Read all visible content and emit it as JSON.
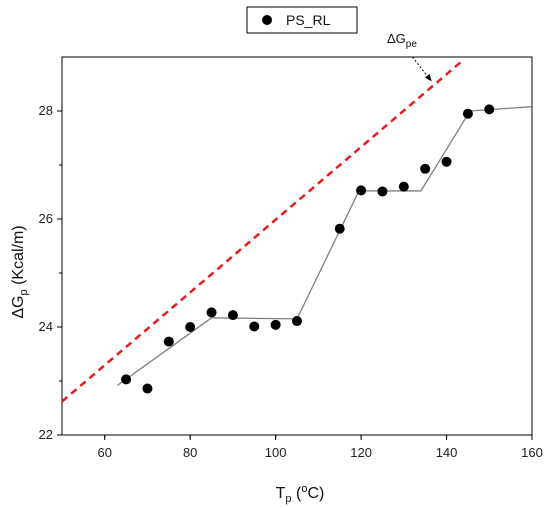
{
  "chart_data": {
    "type": "scatter",
    "xlabel": {
      "main": "T",
      "sub": "p",
      "pre": " (",
      "sup": "o",
      "post": "C)"
    },
    "ylabel": {
      "main": "ΔG",
      "sub": "p",
      "post": " (Kcal/m)"
    },
    "xlim": [
      50,
      160
    ],
    "ylim": [
      22,
      29
    ],
    "x_ticks": [
      60,
      80,
      100,
      120,
      140,
      160
    ],
    "y_ticks": [
      22,
      24,
      26,
      28
    ],
    "legend": {
      "label": "PS_RL",
      "position": "top-center"
    },
    "grid": false,
    "series": [
      {
        "name": "PS_RL",
        "marker": "filled-circle",
        "color": "#000000",
        "x": [
          65,
          70,
          75,
          80,
          85,
          90,
          95,
          100,
          105,
          115,
          120,
          125,
          130,
          135,
          140,
          145,
          150
        ],
        "y": [
          23.03,
          22.86,
          23.73,
          24.0,
          24.27,
          24.22,
          24.01,
          24.04,
          24.11,
          25.82,
          26.53,
          26.51,
          26.6,
          26.93,
          27.06,
          27.95,
          28.03
        ]
      }
    ],
    "fit_line": {
      "color": "#808080",
      "x": [
        63,
        85,
        105,
        119.5,
        134,
        145.5,
        160
      ],
      "y": [
        22.92,
        24.17,
        24.15,
        26.52,
        26.52,
        28.0,
        28.08
      ]
    },
    "dashed_line": {
      "color": "#e51d1d",
      "x": [
        50,
        144
      ],
      "y": [
        22.62,
        28.95
      ]
    },
    "annotation": {
      "main": "ΔG",
      "sub": "pe",
      "arrow_from": [
        132,
        29.0
      ],
      "arrow_to": [
        136.5,
        28.55
      ]
    }
  }
}
